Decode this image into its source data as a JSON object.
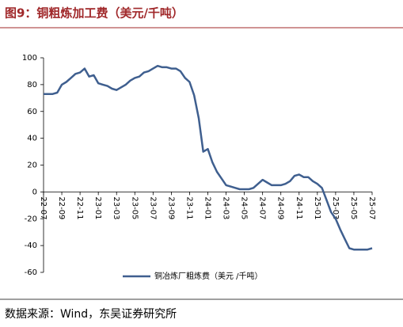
{
  "chart_data": {
    "type": "line",
    "title": "图9：铜粗炼加工费（美元/千吨）",
    "source": "数据来源：Wind，东吴证券研究所",
    "categories": [
      "22-07",
      null,
      null,
      null,
      "22-09",
      null,
      null,
      null,
      "22-11",
      null,
      null,
      null,
      "23-01",
      null,
      null,
      null,
      "23-03",
      null,
      null,
      null,
      "23-05",
      null,
      null,
      null,
      "23-07",
      null,
      null,
      null,
      "23-09",
      null,
      null,
      null,
      "23-11",
      null,
      null,
      null,
      "24-01",
      null,
      null,
      null,
      "24-03",
      null,
      null,
      null,
      "24-05",
      null,
      null,
      null,
      "24-07",
      null,
      null,
      null,
      "24-09",
      null,
      null,
      null,
      "24-11",
      null,
      null,
      null,
      "25-01",
      null,
      null,
      null,
      "25-03",
      null,
      null,
      null,
      "25-05",
      null,
      null,
      null,
      "25-07"
    ],
    "series": [
      {
        "name": "铜冶炼厂粗炼费（美元 /千吨）",
        "color": "#3f5f8f",
        "values": [
          73,
          73,
          73,
          74,
          80,
          82,
          85,
          88,
          89,
          92,
          86,
          87,
          81,
          80,
          79,
          77,
          76,
          78,
          80,
          83,
          85,
          86,
          89,
          90,
          92,
          94,
          93,
          93,
          92,
          92,
          90,
          85,
          82,
          72,
          55,
          30,
          32,
          22,
          15,
          10,
          5,
          4,
          3,
          2,
          2,
          2,
          3,
          6,
          9,
          7,
          5,
          5,
          5,
          6,
          8,
          12,
          13,
          11,
          11,
          8,
          6,
          3,
          -6,
          -15,
          -20,
          -28,
          -35,
          -42,
          -43,
          -43,
          -43,
          -43,
          -42
        ]
      }
    ],
    "ylim": [
      -60,
      100
    ],
    "yticks": [
      -60,
      -40,
      -20,
      0,
      20,
      40,
      60,
      80,
      100
    ],
    "legend": "bottom"
  }
}
